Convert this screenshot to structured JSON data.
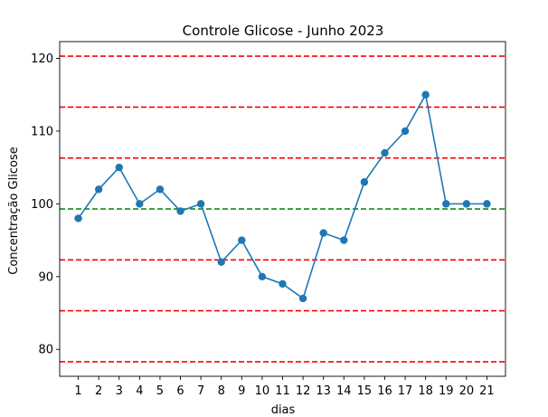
{
  "chart_data": {
    "type": "line",
    "title": "Controle Glicose - Junho 2023",
    "xlabel": "dias",
    "ylabel": "Concentração Glicose",
    "x": [
      1,
      2,
      3,
      4,
      5,
      6,
      7,
      8,
      9,
      10,
      11,
      12,
      13,
      14,
      15,
      16,
      17,
      18,
      19,
      20,
      21
    ],
    "series": [
      {
        "values": [
          98,
          102,
          105,
          100,
          102,
          99,
          100,
          92,
          95,
          90,
          89,
          87,
          96,
          95,
          103,
          107,
          110,
          115,
          100,
          100,
          100
        ],
        "color": "#1f77b4"
      }
    ],
    "xticks": [
      "1",
      "2",
      "3",
      "4",
      "5",
      "6",
      "7",
      "8",
      "9",
      "10",
      "11",
      "12",
      "13",
      "14",
      "15",
      "16",
      "17",
      "18",
      "19",
      "20",
      "21"
    ],
    "yticks": [
      80,
      90,
      100,
      110,
      120
    ],
    "xlim": [
      0.09,
      21.91
    ],
    "ylim": [
      76.3,
      122.3
    ],
    "reference_lines": [
      {
        "y": 99.3,
        "color": "#008000",
        "style": "dashed"
      },
      {
        "y": 92.3,
        "color": "#ff0000",
        "style": "dashed"
      },
      {
        "y": 106.3,
        "color": "#ff0000",
        "style": "dashed"
      },
      {
        "y": 85.3,
        "color": "#ff0000",
        "style": "dashed"
      },
      {
        "y": 113.3,
        "color": "#ff0000",
        "style": "dashed"
      },
      {
        "y": 78.3,
        "color": "#ff0000",
        "style": "dashed"
      },
      {
        "y": 120.3,
        "color": "#ff0000",
        "style": "dashed"
      }
    ],
    "grid": false,
    "legend": false
  }
}
